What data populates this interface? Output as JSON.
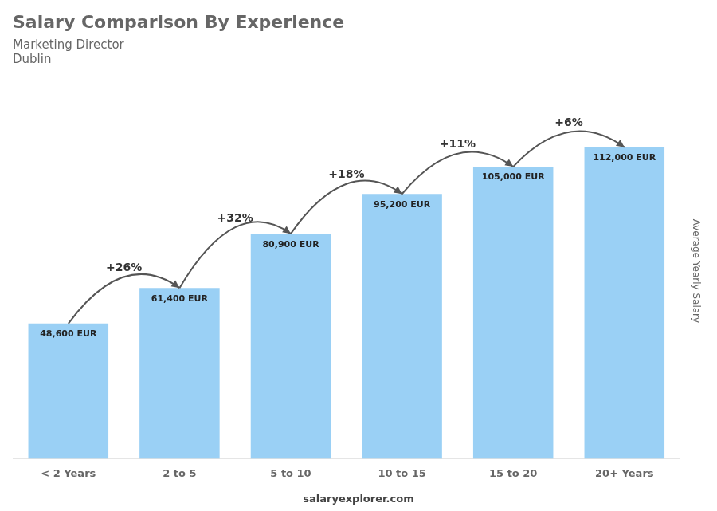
{
  "chart_data": {
    "type": "bar",
    "title": "Salary Comparison By Experience",
    "subtitle": [
      "Marketing Director",
      "Dublin"
    ],
    "ylabel": "Average Yearly Salary",
    "categories": [
      "< 2 Years",
      "2 to 5",
      "5 to 10",
      "10 to 15",
      "15 to 20",
      "20+ Years"
    ],
    "values": [
      48600,
      61400,
      80900,
      95200,
      105000,
      112000
    ],
    "value_labels": [
      "48,600 EUR",
      "61,400 EUR",
      "80,900 EUR",
      "95,200 EUR",
      "105,000 EUR",
      "112,000 EUR"
    ],
    "data_labels": true,
    "annotations": [
      "+26%",
      "+32%",
      "+18%",
      "+11%",
      "+6%"
    ],
    "footer": "salaryexplorer.com",
    "ylim": [
      0,
      135000
    ],
    "grid": false,
    "tick_labels": "x"
  }
}
